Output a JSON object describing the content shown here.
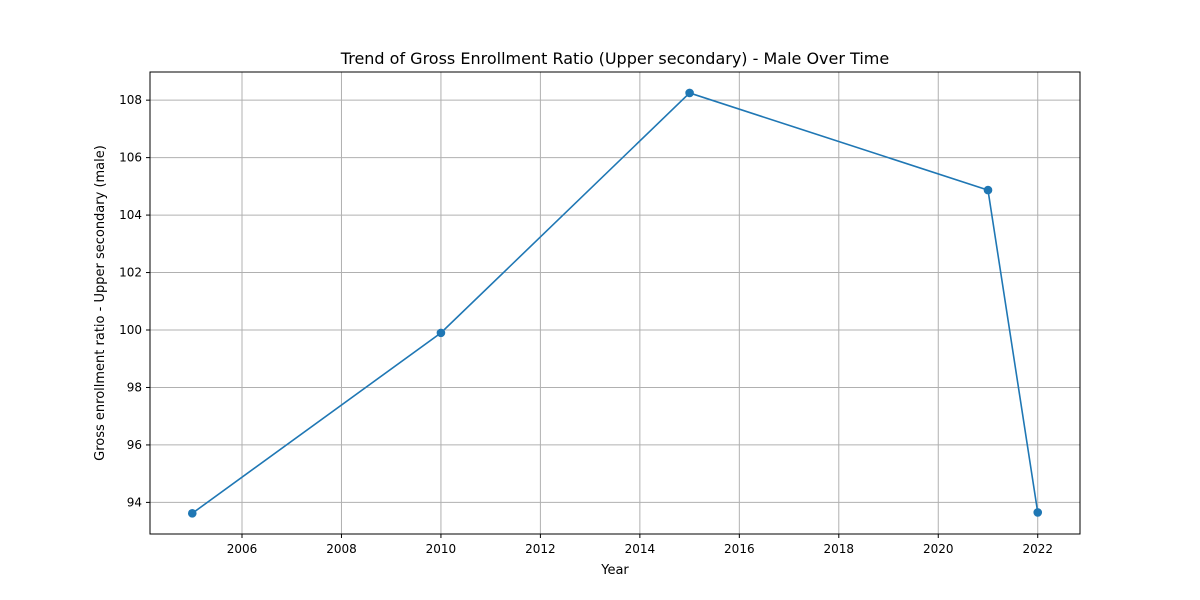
{
  "chart_data": {
    "type": "line",
    "title": "Trend of Gross Enrollment Ratio (Upper secondary) - Male Over Time",
    "xlabel": "Year",
    "ylabel": "Gross enrollment ratio - Upper secondary (male)",
    "x": [
      2005,
      2010,
      2015,
      2021,
      2022
    ],
    "series": [
      {
        "values": [
          93.62,
          99.9,
          108.25,
          104.87,
          93.65
        ],
        "color": "#1f77b4",
        "marker": "circle"
      }
    ],
    "xlim": [
      2004.15,
      2022.85
    ],
    "ylim": [
      92.9,
      108.98
    ],
    "xticks": [
      "2006",
      "2008",
      "2010",
      "2012",
      "2014",
      "2016",
      "2018",
      "2020",
      "2022"
    ],
    "yticks": [
      "94",
      "96",
      "98",
      "100",
      "102",
      "104",
      "106",
      "108"
    ],
    "grid": true
  }
}
